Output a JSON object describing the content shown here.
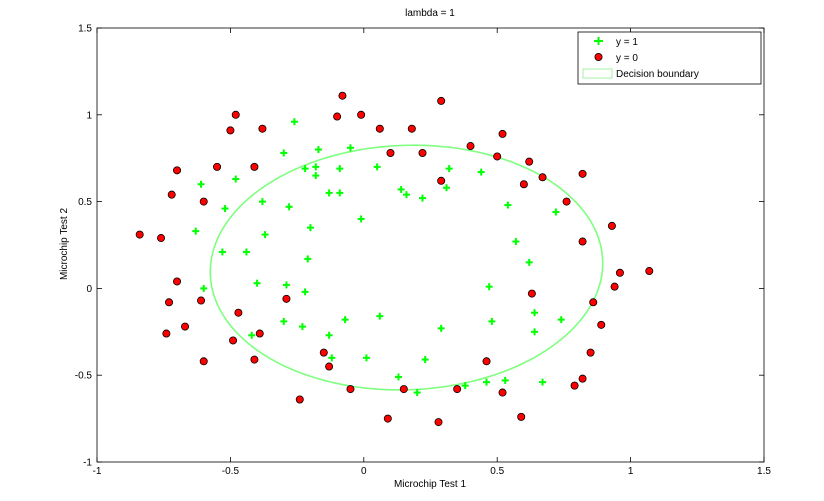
{
  "chart_data": {
    "type": "scatter",
    "title": "lambda = 1",
    "xlabel": "Microchip Test 1",
    "ylabel": "Microchip Test 2",
    "xlim": [
      -1,
      1.5
    ],
    "ylim": [
      -1,
      1.5
    ],
    "xticks": [
      "-1",
      "-0.5",
      "0",
      "0.5",
      "1",
      "1.5"
    ],
    "yticks": [
      "-1",
      "-0.5",
      "0",
      "0.5",
      "1",
      "1.5"
    ],
    "xtick_values": [
      -1,
      -0.5,
      0,
      0.5,
      1,
      1.5
    ],
    "ytick_values": [
      -1,
      -0.5,
      0,
      0.5,
      1,
      1.5
    ],
    "legend_position": "top-right",
    "legend": [
      "y = 1",
      "y = 0",
      "Decision boundary"
    ],
    "series": [
      {
        "name": "y = 1",
        "marker": "plus",
        "color": "#00ff00",
        "points": [
          [
            -0.61,
            0.6
          ],
          [
            -0.48,
            0.63
          ],
          [
            -0.3,
            0.78
          ],
          [
            -0.26,
            0.96
          ],
          [
            -0.22,
            0.69
          ],
          [
            -0.17,
            0.8
          ],
          [
            -0.18,
            0.7
          ],
          [
            -0.18,
            0.65
          ],
          [
            -0.09,
            0.69
          ],
          [
            -0.05,
            0.81
          ],
          [
            -0.13,
            0.55
          ],
          [
            -0.09,
            0.55
          ],
          [
            -0.52,
            0.46
          ],
          [
            -0.63,
            0.33
          ],
          [
            -0.38,
            0.5
          ],
          [
            -0.28,
            0.47
          ],
          [
            -0.37,
            0.31
          ],
          [
            -0.2,
            0.35
          ],
          [
            -0.01,
            0.4
          ],
          [
            0.05,
            0.7
          ],
          [
            0.14,
            0.57
          ],
          [
            0.16,
            0.54
          ],
          [
            0.22,
            0.52
          ],
          [
            0.32,
            0.69
          ],
          [
            0.31,
            0.58
          ],
          [
            0.44,
            0.67
          ],
          [
            0.54,
            0.48
          ],
          [
            0.57,
            0.27
          ],
          [
            0.62,
            0.15
          ],
          [
            0.72,
            0.44
          ],
          [
            -0.53,
            0.21
          ],
          [
            -0.44,
            0.21
          ],
          [
            -0.21,
            0.17
          ],
          [
            -0.4,
            0.03
          ],
          [
            -0.29,
            0.02
          ],
          [
            -0.6,
            0.0
          ],
          [
            -0.22,
            -0.02
          ],
          [
            -0.3,
            -0.19
          ],
          [
            -0.23,
            -0.22
          ],
          [
            -0.13,
            -0.27
          ],
          [
            -0.07,
            -0.18
          ],
          [
            0.06,
            -0.16
          ],
          [
            -0.42,
            -0.27
          ],
          [
            -0.12,
            -0.4
          ],
          [
            0.01,
            -0.4
          ],
          [
            0.23,
            -0.41
          ],
          [
            0.29,
            -0.23
          ],
          [
            0.47,
            0.01
          ],
          [
            0.48,
            -0.19
          ],
          [
            0.64,
            -0.14
          ],
          [
            0.64,
            -0.25
          ],
          [
            0.74,
            -0.18
          ],
          [
            0.67,
            -0.54
          ],
          [
            0.53,
            -0.53
          ],
          [
            0.46,
            -0.54
          ],
          [
            0.38,
            -0.56
          ],
          [
            0.13,
            -0.51
          ],
          [
            0.2,
            -0.6
          ]
        ]
      },
      {
        "name": "y = 0",
        "marker": "circle",
        "color": "#ff0000",
        "points": [
          [
            -0.08,
            1.11
          ],
          [
            -0.48,
            1.0
          ],
          [
            -0.5,
            0.91
          ],
          [
            -0.38,
            0.92
          ],
          [
            -0.1,
            0.99
          ],
          [
            -0.01,
            1.0
          ],
          [
            0.06,
            0.92
          ],
          [
            0.18,
            0.92
          ],
          [
            0.29,
            1.08
          ],
          [
            0.52,
            0.89
          ],
          [
            0.4,
            0.82
          ],
          [
            0.5,
            0.76
          ],
          [
            0.62,
            0.73
          ],
          [
            0.67,
            0.64
          ],
          [
            0.6,
            0.6
          ],
          [
            0.76,
            0.5
          ],
          [
            0.82,
            0.66
          ],
          [
            0.93,
            0.36
          ],
          [
            0.82,
            0.27
          ],
          [
            0.96,
            0.09
          ],
          [
            1.07,
            0.1
          ],
          [
            0.94,
            0.01
          ],
          [
            0.86,
            -0.08
          ],
          [
            0.89,
            -0.21
          ],
          [
            0.85,
            -0.37
          ],
          [
            0.82,
            -0.52
          ],
          [
            0.79,
            -0.56
          ],
          [
            0.59,
            -0.74
          ],
          [
            0.52,
            -0.6
          ],
          [
            0.46,
            -0.42
          ],
          [
            0.63,
            -0.03
          ],
          [
            0.35,
            -0.58
          ],
          [
            0.29,
            0.62
          ],
          [
            0.22,
            0.78
          ],
          [
            0.1,
            0.78
          ],
          [
            -0.55,
            0.7
          ],
          [
            -0.7,
            0.68
          ],
          [
            -0.72,
            0.54
          ],
          [
            -0.6,
            0.5
          ],
          [
            -0.41,
            0.7
          ],
          [
            -0.84,
            0.31
          ],
          [
            -0.76,
            0.29
          ],
          [
            -0.7,
            0.04
          ],
          [
            -0.73,
            -0.08
          ],
          [
            -0.61,
            -0.07
          ],
          [
            -0.47,
            -0.14
          ],
          [
            -0.39,
            -0.26
          ],
          [
            -0.29,
            -0.06
          ],
          [
            -0.67,
            -0.22
          ],
          [
            -0.74,
            -0.26
          ],
          [
            -0.49,
            -0.3
          ],
          [
            -0.6,
            -0.42
          ],
          [
            -0.41,
            -0.41
          ],
          [
            -0.15,
            -0.37
          ],
          [
            -0.13,
            -0.45
          ],
          [
            -0.05,
            -0.58
          ],
          [
            0.15,
            -0.58
          ],
          [
            -0.24,
            -0.64
          ],
          [
            0.09,
            -0.75
          ],
          [
            0.28,
            -0.77
          ]
        ]
      },
      {
        "name": "Decision boundary",
        "marker": "line",
        "color": "#7fff7f",
        "shape": {
          "center": [
            0.16,
            0.12
          ],
          "radii": [
            0.74,
            0.7
          ],
          "rotation_deg": 20
        }
      }
    ]
  }
}
